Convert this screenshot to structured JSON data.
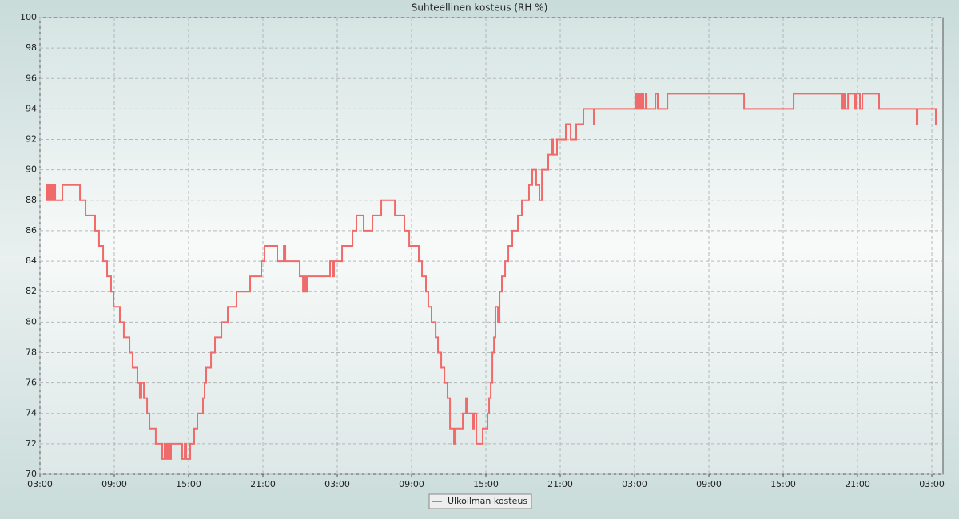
{
  "chart_data": {
    "type": "line",
    "title": "Suhteellinen kosteus (RH %)",
    "step": "post",
    "x": [
      0.45,
      0.58,
      0.71,
      0.84,
      0.97,
      1.1,
      1.23,
      1.81,
      3.23,
      3.68,
      4.45,
      4.77,
      5.1,
      5.42,
      5.74,
      5.94,
      6.45,
      6.77,
      7.23,
      7.48,
      7.87,
      8.06,
      8.19,
      8.39,
      8.65,
      8.84,
      9.35,
      9.87,
      10.06,
      10.19,
      10.32,
      10.45,
      10.58,
      11.48,
      11.68,
      11.81,
      12.13,
      12.45,
      12.71,
      13.16,
      13.29,
      13.42,
      13.81,
      14.13,
      14.65,
      15.16,
      15.87,
      16.97,
      17.87,
      18.13,
      19.16,
      19.68,
      19.81,
      20.97,
      21.23,
      21.35,
      21.48,
      21.61,
      23.42,
      23.61,
      23.74,
      24.39,
      25.23,
      25.55,
      26.13,
      26.84,
      27.55,
      28.65,
      29.42,
      29.81,
      30.58,
      30.84,
      31.16,
      31.35,
      31.61,
      31.94,
      32.13,
      32.39,
      32.65,
      32.9,
      33.1,
      33.42,
      33.55,
      34.13,
      34.39,
      34.45,
      34.9,
      35.03,
      35.23,
      35.74,
      36.13,
      36.26,
      36.39,
      36.52,
      36.65,
      36.77,
      36.97,
      37.1,
      37.29,
      37.55,
      37.81,
      38.13,
      38.58,
      38.9,
      39.48,
      39.74,
      40.06,
      40.32,
      40.52,
      41.03,
      41.29,
      41.42,
      41.74,
      42.45,
      42.84,
      43.29,
      43.87,
      44.71,
      44.77,
      48.06,
      48.19,
      48.32,
      48.45,
      48.58,
      48.71,
      48.9,
      48.97,
      49.68,
      49.87,
      50.65,
      56.84,
      60.84,
      64.71,
      64.84,
      64.97,
      65.23,
      65.74,
      65.87,
      66.19,
      66.39,
      67.74,
      70.77,
      70.84,
      72.32,
      72.45
    ],
    "series": [
      {
        "name": "Ulkoilman kosteus",
        "color": "#f06a6a",
        "values": [
          88,
          89,
          88,
          89,
          88,
          89,
          88,
          89,
          88,
          87,
          86,
          85,
          84,
          83,
          82,
          81,
          80,
          79,
          78,
          77,
          76,
          75,
          76,
          75,
          74,
          73,
          72,
          71,
          72,
          71,
          72,
          71,
          72,
          71,
          72,
          71,
          72,
          73,
          74,
          75,
          76,
          77,
          78,
          79,
          80,
          81,
          82,
          83,
          84,
          85,
          84,
          85,
          84,
          83,
          82,
          83,
          82,
          83,
          84,
          83,
          84,
          85,
          86,
          87,
          86,
          87,
          88,
          87,
          86,
          85,
          84,
          83,
          82,
          81,
          80,
          79,
          78,
          77,
          76,
          75,
          73,
          72,
          73,
          74,
          75,
          74,
          73,
          74,
          72,
          73,
          74,
          75,
          76,
          78,
          79,
          81,
          80,
          82,
          83,
          84,
          85,
          86,
          87,
          88,
          89,
          90,
          89,
          88,
          90,
          91,
          92,
          91,
          92,
          93,
          92,
          93,
          94,
          93,
          94,
          95,
          94,
          95,
          94,
          95,
          94,
          95,
          94,
          95,
          94,
          95,
          94,
          95,
          94,
          95,
          94,
          95,
          94,
          95,
          94,
          95,
          94,
          93,
          94,
          93,
          93
        ]
      }
    ],
    "xlim": [
      0,
      72.9
    ],
    "ylim": [
      70,
      100
    ],
    "xticks": [
      {
        "value": 0,
        "label": "03:00"
      },
      {
        "value": 6,
        "label": "09:00"
      },
      {
        "value": 12,
        "label": "15:00"
      },
      {
        "value": 18,
        "label": "21:00"
      },
      {
        "value": 24,
        "label": "03:00"
      },
      {
        "value": 30,
        "label": "09:00"
      },
      {
        "value": 36,
        "label": "15:00"
      },
      {
        "value": 42,
        "label": "21:00"
      },
      {
        "value": 48,
        "label": "03:00"
      },
      {
        "value": 54,
        "label": "09:00"
      },
      {
        "value": 60,
        "label": "15:00"
      },
      {
        "value": 66,
        "label": "21:00"
      },
      {
        "value": 72,
        "label": "03:00"
      }
    ],
    "yticks": [
      70,
      72,
      74,
      76,
      78,
      80,
      82,
      84,
      86,
      88,
      90,
      92,
      94,
      96,
      98,
      100
    ],
    "grid": true
  }
}
